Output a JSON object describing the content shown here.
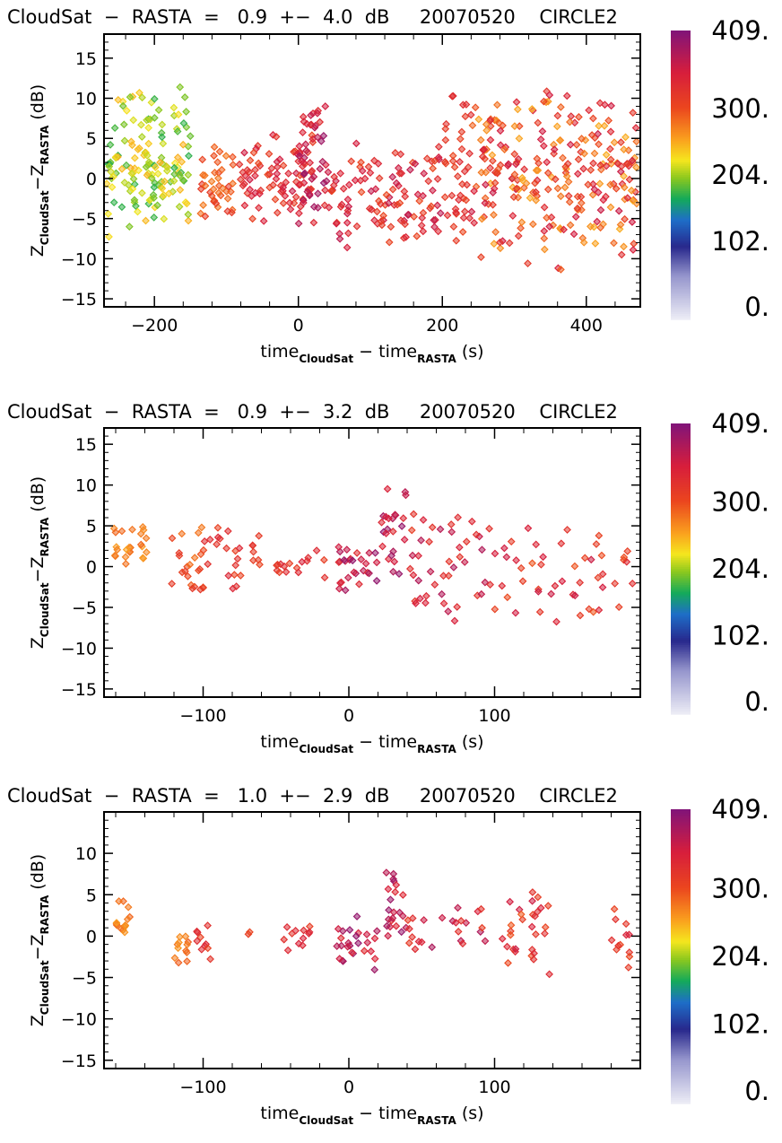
{
  "chart_data": [
    {
      "type": "scatter",
      "title": "CloudSat  −  RASTA  =   0.9  +−  4.0  dB     20070520    CIRCLE2",
      "xlabel": {
        "main1": "time",
        "sub1": "CloudSat",
        "mid": " −  time",
        "sub2": "RASTA",
        "end": " (s)"
      },
      "ylabel": {
        "main1": "Z",
        "sub1": "CloudSat",
        "mid": "−Z",
        "sub2": "RASTA",
        "end": " (dB)"
      },
      "xlim": [
        -270,
        475
      ],
      "ylim": [
        -16,
        18
      ],
      "xticks": [
        -200,
        0,
        200,
        400
      ],
      "xticklabels": [
        "−200",
        "0",
        "200",
        "400"
      ],
      "yticks": [
        -15,
        -10,
        -5,
        0,
        5,
        10,
        15
      ],
      "yticklabels": [
        "−15",
        "−10",
        "−5",
        "0",
        "5",
        "10",
        "15"
      ],
      "colorbar": {
        "ticklabels": [
          "409.",
          "300.",
          "204.",
          "102.",
          "0."
        ],
        "range": [
          0,
          409
        ]
      },
      "clusters": [
        {
          "x": [
            -270,
            -150
          ],
          "y": [
            -8,
            12
          ],
          "c": [
            175,
            250
          ],
          "n": 150
        },
        {
          "x": [
            -140,
            -90
          ],
          "y": [
            -6,
            6
          ],
          "c": [
            270,
            320
          ],
          "n": 40
        },
        {
          "x": [
            -90,
            20
          ],
          "y": [
            -6,
            6
          ],
          "c": [
            300,
            360
          ],
          "n": 80
        },
        {
          "x": [
            0,
            40
          ],
          "y": [
            -7,
            12
          ],
          "c": [
            330,
            400
          ],
          "n": 50
        },
        {
          "x": [
            40,
            200
          ],
          "y": [
            -9,
            5
          ],
          "c": [
            300,
            370
          ],
          "n": 110
        },
        {
          "x": [
            200,
            240
          ],
          "y": [
            -12,
            14
          ],
          "c": [
            300,
            340
          ],
          "n": 40
        },
        {
          "x": [
            240,
            475
          ],
          "y": [
            -12,
            12
          ],
          "c": [
            250,
            360
          ],
          "n": 260
        }
      ]
    },
    {
      "type": "scatter",
      "title": "CloudSat  −  RASTA  =   0.9  +−  3.2  dB     20070520    CIRCLE2",
      "xlabel": {
        "main1": "time",
        "sub1": "CloudSat",
        "mid": " −  time",
        "sub2": "RASTA",
        "end": " (s)"
      },
      "ylabel": {
        "main1": "Z",
        "sub1": "CloudSat",
        "mid": "−Z",
        "sub2": "RASTA",
        "end": " (dB)"
      },
      "xlim": [
        -168,
        200
      ],
      "ylim": [
        -16,
        17
      ],
      "xticks": [
        -100,
        0,
        100
      ],
      "xticklabels": [
        "−100",
        "0",
        "100"
      ],
      "yticks": [
        -15,
        -10,
        -5,
        0,
        5,
        10,
        15
      ],
      "yticklabels": [
        "−15",
        "−10",
        "−5",
        "0",
        "5",
        "10",
        "15"
      ],
      "colorbar": {
        "ticklabels": [
          "409.",
          "300.",
          "204.",
          "102.",
          "0."
        ],
        "range": [
          0,
          409
        ]
      },
      "clusters": [
        {
          "x": [
            -162,
            -138
          ],
          "y": [
            -1,
            5.5
          ],
          "c": [
            255,
            285
          ],
          "n": 24
        },
        {
          "x": [
            -122,
            -98
          ],
          "y": [
            -5,
            5.5
          ],
          "c": [
            275,
            320
          ],
          "n": 22
        },
        {
          "x": [
            -100,
            -60
          ],
          "y": [
            -4.5,
            5.5
          ],
          "c": [
            300,
            340
          ],
          "n": 26
        },
        {
          "x": [
            -50,
            -15
          ],
          "y": [
            -3,
            4
          ],
          "c": [
            310,
            350
          ],
          "n": 16
        },
        {
          "x": [
            -12,
            20
          ],
          "y": [
            -5,
            3.5
          ],
          "c": [
            330,
            400
          ],
          "n": 28
        },
        {
          "x": [
            22,
            40
          ],
          "y": [
            -2,
            12
          ],
          "c": [
            330,
            400
          ],
          "n": 24
        },
        {
          "x": [
            40,
            100
          ],
          "y": [
            -8,
            7.5
          ],
          "c": [
            310,
            380
          ],
          "n": 44
        },
        {
          "x": [
            100,
            195
          ],
          "y": [
            -8.5,
            6.5
          ],
          "c": [
            290,
            360
          ],
          "n": 48
        }
      ]
    },
    {
      "type": "scatter",
      "title": "CloudSat  −  RASTA  =   1.0  +−  2.9  dB     20070520    CIRCLE2",
      "xlabel": {
        "main1": "time",
        "sub1": "CloudSat",
        "mid": " −  time",
        "sub2": "RASTA",
        "end": " (s)"
      },
      "ylabel": {
        "main1": "Z",
        "sub1": "CloudSat",
        "mid": "−Z",
        "sub2": "RASTA",
        "end": " (dB)"
      },
      "xlim": [
        -168,
        200
      ],
      "ylim": [
        -16,
        15
      ],
      "xticks": [
        -100,
        0,
        100
      ],
      "xticklabels": [
        "−100",
        "0",
        "100"
      ],
      "yticks": [
        -15,
        -10,
        -5,
        0,
        5,
        10
      ],
      "yticklabels": [
        "−15",
        "−10",
        "−5",
        "0",
        "5",
        "10"
      ],
      "colorbar": {
        "ticklabels": [
          "409.",
          "300.",
          "204.",
          "102.",
          "0."
        ],
        "range": [
          0,
          409
        ]
      },
      "clusters": [
        {
          "x": [
            -160,
            -150
          ],
          "y": [
            -1,
            4.5
          ],
          "c": [
            255,
            285
          ],
          "n": 14
        },
        {
          "x": [
            -120,
            -110
          ],
          "y": [
            -4,
            1.5
          ],
          "c": [
            260,
            290
          ],
          "n": 12
        },
        {
          "x": [
            -105,
            -95
          ],
          "y": [
            -5,
            5
          ],
          "c": [
            300,
            340
          ],
          "n": 10
        },
        {
          "x": [
            -70,
            -68
          ],
          "y": [
            0,
            1
          ],
          "c": [
            300,
            320
          ],
          "n": 2
        },
        {
          "x": [
            -45,
            -25
          ],
          "y": [
            -3,
            3
          ],
          "c": [
            310,
            350
          ],
          "n": 12
        },
        {
          "x": [
            -10,
            20
          ],
          "y": [
            -4.5,
            3
          ],
          "c": [
            330,
            400
          ],
          "n": 26
        },
        {
          "x": [
            25,
            40
          ],
          "y": [
            -2,
            10
          ],
          "c": [
            330,
            400
          ],
          "n": 22
        },
        {
          "x": [
            40,
            95
          ],
          "y": [
            -2,
            4
          ],
          "c": [
            310,
            380
          ],
          "n": 24
        },
        {
          "x": [
            105,
            140
          ],
          "y": [
            -5,
            6
          ],
          "c": [
            290,
            360
          ],
          "n": 30
        },
        {
          "x": [
            180,
            195
          ],
          "y": [
            -5,
            4
          ],
          "c": [
            300,
            350
          ],
          "n": 12
        }
      ]
    }
  ]
}
